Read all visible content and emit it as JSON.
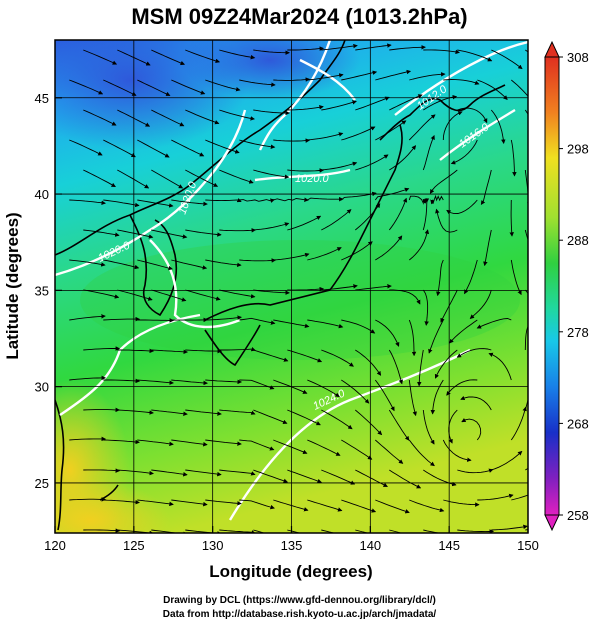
{
  "title": "MSM 09Z24Mar2024 (1013.2hPa)",
  "map": {
    "x_axis_label": "Longitude (degrees)",
    "y_axis_label": "Latitude  (degrees)",
    "lon_range": [
      120,
      150
    ],
    "lat_range": [
      22.4,
      48
    ],
    "lon_ticks": [
      120,
      125,
      130,
      135,
      140,
      145,
      150
    ],
    "lat_ticks": [
      25,
      30,
      35,
      40,
      45
    ],
    "contour_labels": [
      "1020.0",
      "1020.0",
      "1020.0",
      "1012.0",
      "1016.0",
      "1024.0"
    ]
  },
  "colorbar": {
    "min": 258,
    "max": 308,
    "tick_labels": [
      308,
      298,
      288,
      278,
      268,
      258
    ]
  },
  "credits": {
    "line1": "Drawing by DCL (https://www.gfd-dennou.org/library/dcl/)",
    "line2": "Data from http://database.rish.kyoto-u.ac.jp/arch/jmadata/"
  },
  "colors": {
    "cold": "#2a52d8",
    "cool": "#18c8e8",
    "mild": "#2ad870",
    "warm": "#c8e828",
    "hot": "#f0c020"
  }
}
